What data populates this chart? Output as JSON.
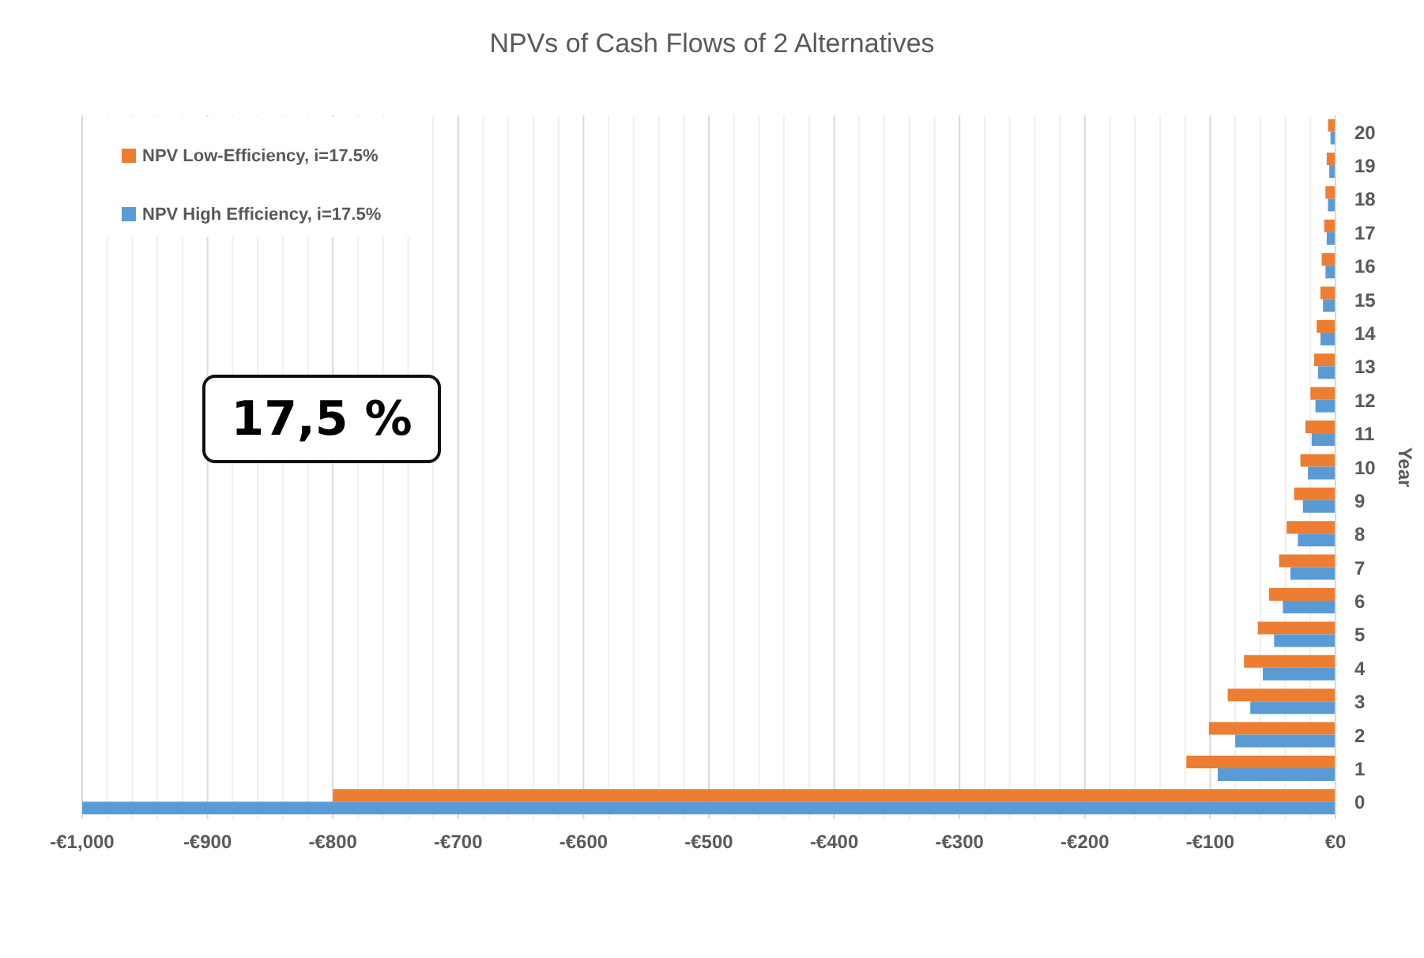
{
  "chart_data": {
    "type": "bar",
    "orientation": "horizontal",
    "title": "NPVs of Cash Flows of 2 Alternatives",
    "ylabel": "Year",
    "categories": [
      "20",
      "19",
      "18",
      "17",
      "16",
      "15",
      "14",
      "13",
      "12",
      "11",
      "10",
      "9",
      "8",
      "7",
      "6",
      "5",
      "4",
      "3",
      "2",
      "1",
      "0"
    ],
    "series": [
      {
        "name": "NPV Low-Efficiency, i=17.5%",
        "color": "#ed7d31",
        "values": [
          -6,
          -7,
          -8,
          -9,
          -11,
          -12,
          -15,
          -17,
          -20,
          -24,
          -28,
          -33,
          -39,
          -45,
          -53,
          -62,
          -73,
          -86,
          -101,
          -119,
          -800
        ]
      },
      {
        "name": "NPV High Efficiency, i=17.5%",
        "color": "#5b9bd5",
        "values": [
          -4,
          -5,
          -6,
          -7,
          -8,
          -10,
          -12,
          -14,
          -16,
          -19,
          -22,
          -26,
          -30,
          -36,
          -42,
          -49,
          -58,
          -68,
          -80,
          -94,
          -1000
        ]
      }
    ],
    "xlim": [
      -1000,
      0
    ],
    "xticks": [
      {
        "value": -1000,
        "label": "-€1,000"
      },
      {
        "value": -980,
        "label": null
      },
      {
        "value": -960,
        "label": null
      },
      {
        "value": -940,
        "label": null
      },
      {
        "value": -920,
        "label": null
      },
      {
        "value": -900,
        "label": "-€900"
      },
      {
        "value": -880,
        "label": null
      },
      {
        "value": -860,
        "label": null
      },
      {
        "value": -840,
        "label": null
      },
      {
        "value": -820,
        "label": null
      },
      {
        "value": -800,
        "label": "-€800"
      },
      {
        "value": -780,
        "label": null
      },
      {
        "value": -760,
        "label": null
      },
      {
        "value": -740,
        "label": null
      },
      {
        "value": -720,
        "label": null
      },
      {
        "value": -700,
        "label": "-€700"
      },
      {
        "value": -680,
        "label": null
      },
      {
        "value": -660,
        "label": null
      },
      {
        "value": -640,
        "label": null
      },
      {
        "value": -620,
        "label": null
      },
      {
        "value": -600,
        "label": "-€600"
      },
      {
        "value": -580,
        "label": null
      },
      {
        "value": -560,
        "label": null
      },
      {
        "value": -540,
        "label": null
      },
      {
        "value": -520,
        "label": null
      },
      {
        "value": -500,
        "label": "-€500"
      },
      {
        "value": -480,
        "label": null
      },
      {
        "value": -460,
        "label": null
      },
      {
        "value": -440,
        "label": null
      },
      {
        "value": -420,
        "label": null
      },
      {
        "value": -400,
        "label": "-€400"
      },
      {
        "value": -380,
        "label": null
      },
      {
        "value": -360,
        "label": null
      },
      {
        "value": -340,
        "label": null
      },
      {
        "value": -320,
        "label": null
      },
      {
        "value": -300,
        "label": "-€300"
      },
      {
        "value": -280,
        "label": null
      },
      {
        "value": -260,
        "label": null
      },
      {
        "value": -240,
        "label": null
      },
      {
        "value": -220,
        "label": null
      },
      {
        "value": -200,
        "label": "-€200"
      },
      {
        "value": -180,
        "label": null
      },
      {
        "value": -160,
        "label": null
      },
      {
        "value": -140,
        "label": null
      },
      {
        "value": -120,
        "label": null
      },
      {
        "value": -100,
        "label": "-€100"
      },
      {
        "value": -80,
        "label": null
      },
      {
        "value": -60,
        "label": null
      },
      {
        "value": -40,
        "label": null
      },
      {
        "value": -20,
        "label": null
      },
      {
        "value": 0,
        "label": "€0"
      }
    ],
    "grid": "x",
    "legend": "top left",
    "annotations": [
      "17,5 %"
    ]
  }
}
